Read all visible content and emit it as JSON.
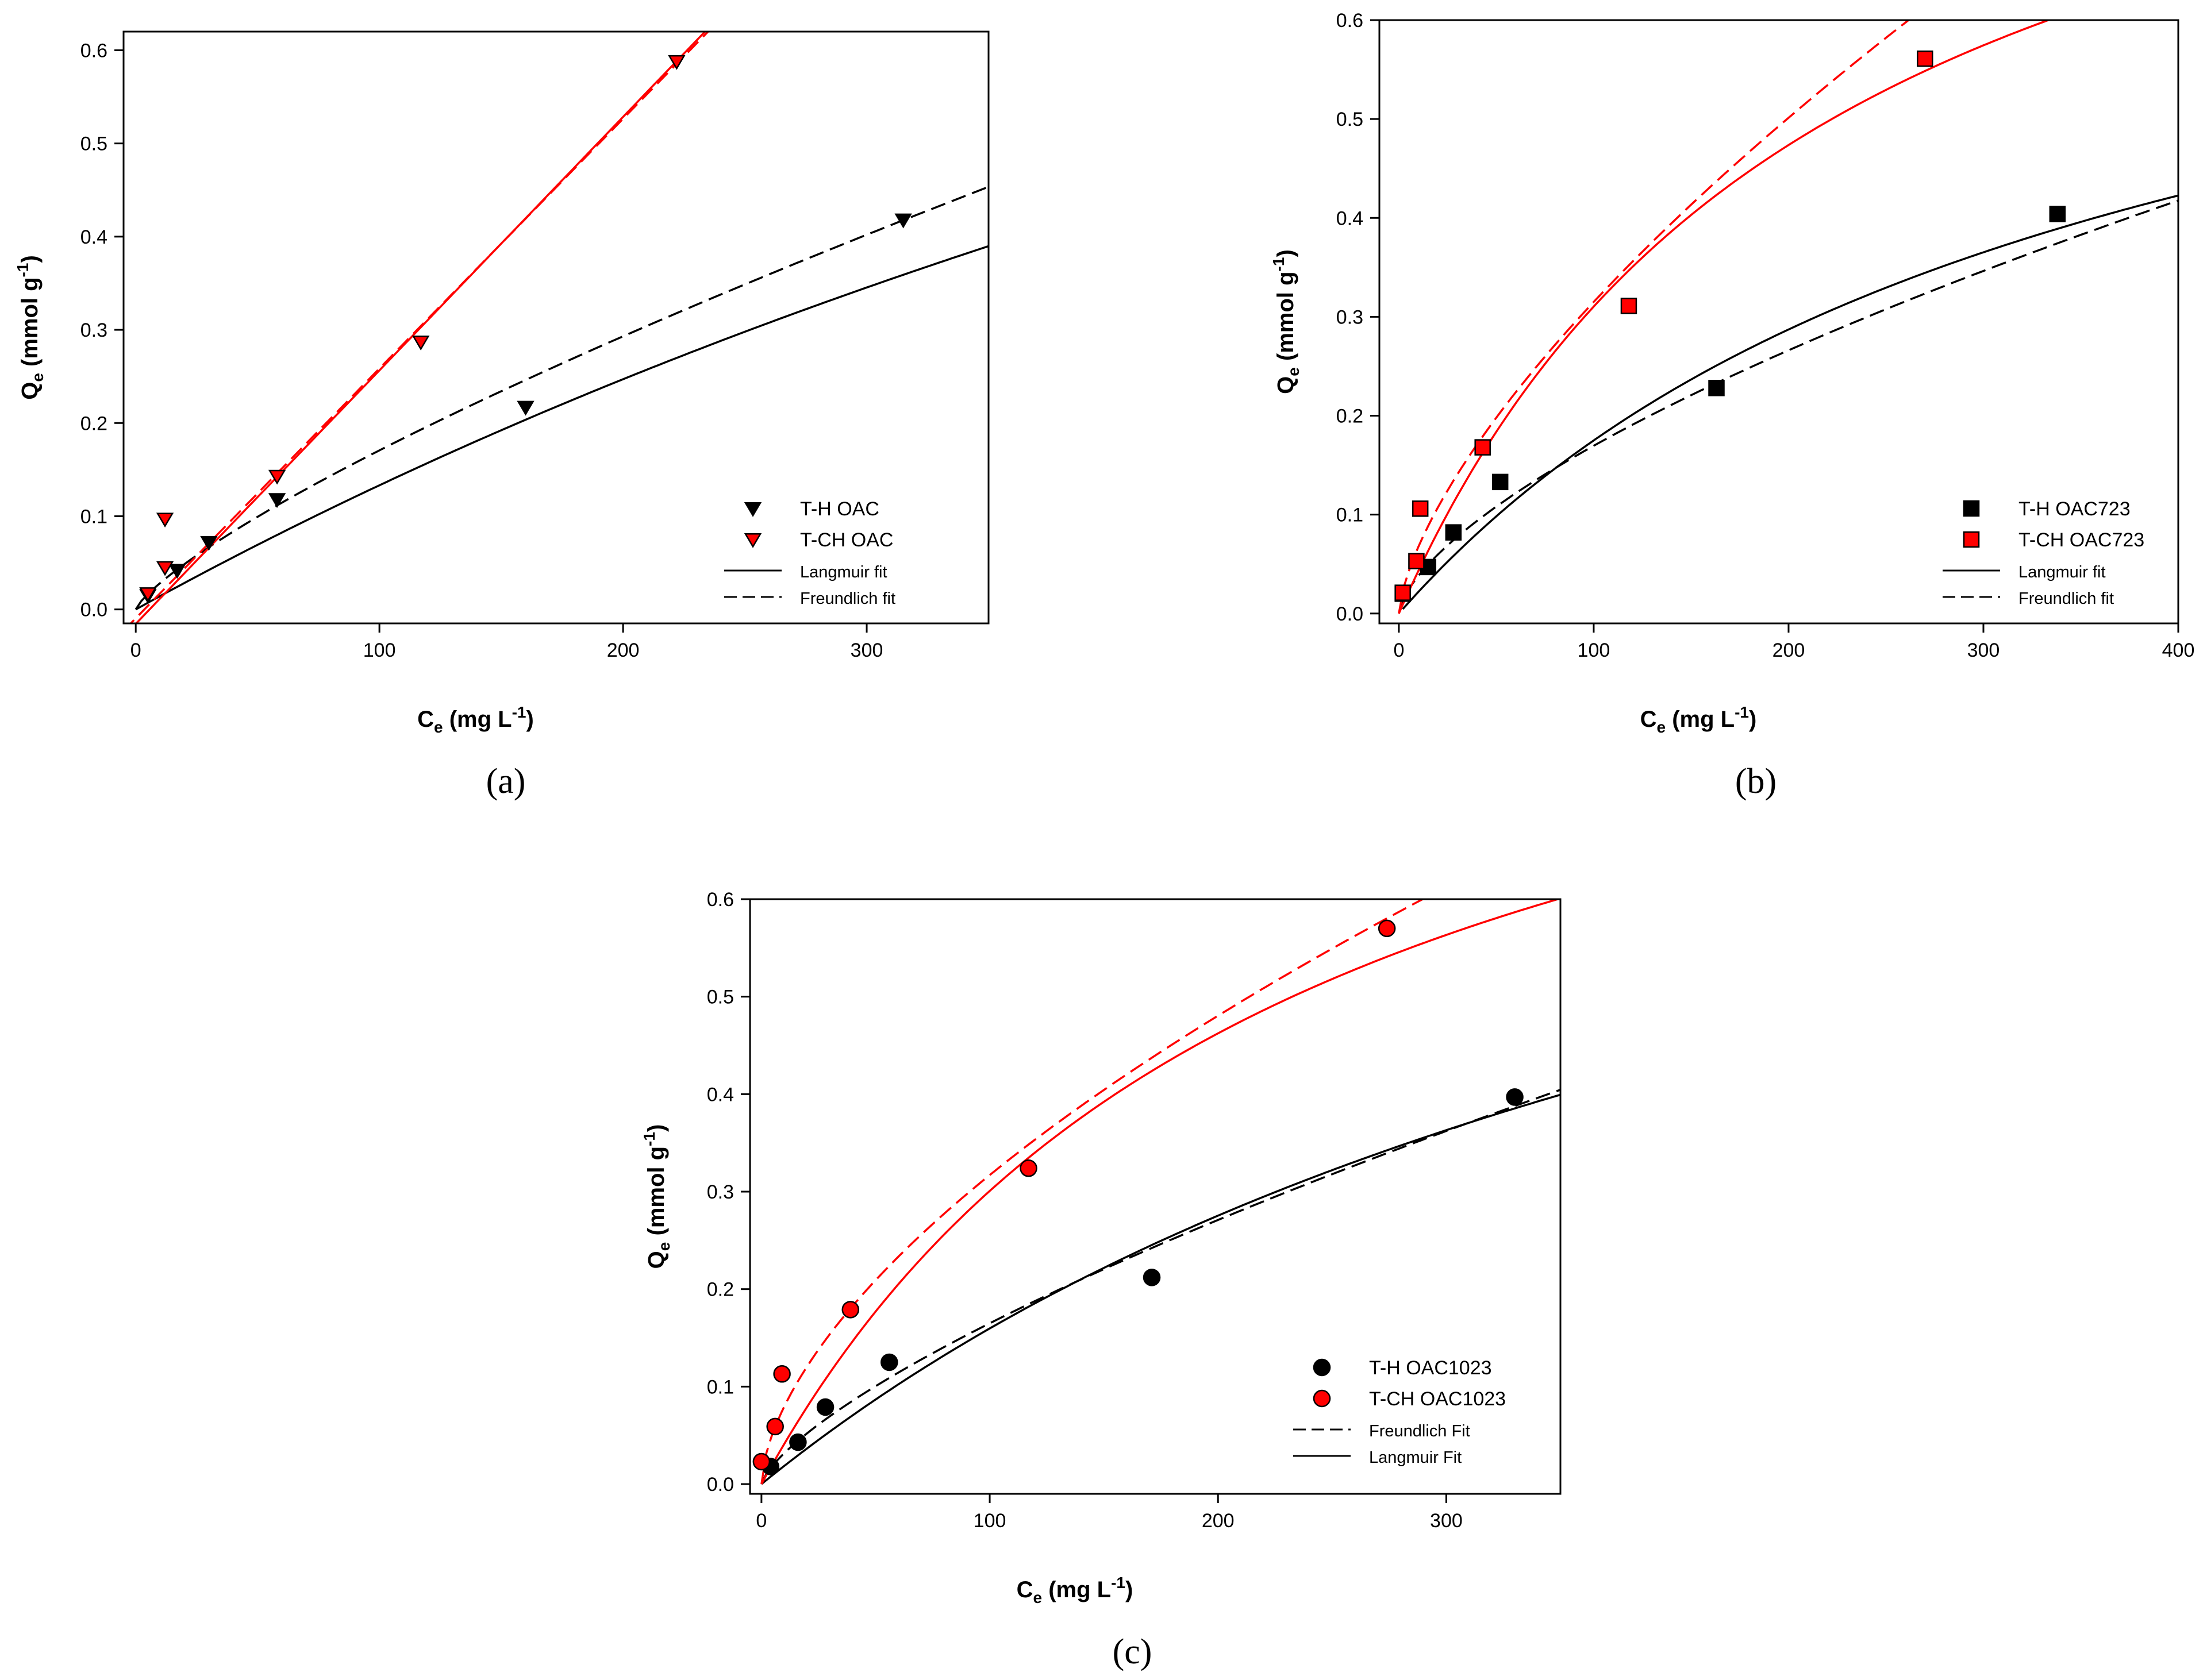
{
  "colors": {
    "th": "#000000",
    "tch": "#ff0000",
    "axis": "#000000"
  },
  "axis_labels": {
    "y_main": "Q",
    "y_sub": "e",
    "y_rest": " (mmol g",
    "y_sup": "-1",
    "y_close": ")",
    "x_main": "C",
    "x_sub": "e",
    "x_rest": " (mg L",
    "x_sup": "-1",
    "x_close": ")"
  },
  "chart_data": [
    {
      "id": "a",
      "panel_label": "(a)",
      "type": "scatter",
      "marker": "triangle-down",
      "xlim": [
        -5,
        350
      ],
      "ylim": [
        -0.015,
        0.62
      ],
      "xticks": [
        0,
        100,
        200,
        300
      ],
      "yticks": [
        0.0,
        0.1,
        0.2,
        0.3,
        0.4,
        0.5,
        0.6
      ],
      "xlabel": "Ce (mg L-1)",
      "ylabel": "Qe (mmol g-1)",
      "legend_position": "bottom-right",
      "series": [
        {
          "name": "T-H OAC",
          "color": "#000000",
          "kind": "points",
          "x": [
            5,
            17,
            30,
            58,
            160,
            315
          ],
          "y": [
            0.015,
            0.042,
            0.072,
            0.118,
            0.217,
            0.418
          ]
        },
        {
          "name": "T-CH OAC",
          "color": "#ff0000",
          "kind": "points",
          "x": [
            5,
            12,
            12,
            58,
            117,
            222
          ],
          "y": [
            0.017,
            0.045,
            0.097,
            0.143,
            0.287,
            0.588
          ]
        },
        {
          "name": "Langmuir fit",
          "group": "T-H OAC",
          "color": "#000000",
          "kind": "langmuir",
          "dash": false,
          "qmax": 1.7,
          "K": 0.00085,
          "x_range": [
            0,
            350
          ]
        },
        {
          "name": "Freundlich fit",
          "group": "T-H OAC",
          "color": "#000000",
          "kind": "freundlich",
          "dash": true,
          "KF": 0.0047,
          "n_inv": 0.78,
          "x_range": [
            0,
            350
          ]
        },
        {
          "name": "Langmuir fit",
          "group": "T-CH OAC",
          "color": "#ff0000",
          "kind": "linear",
          "dash": false,
          "slope": 0.00272,
          "intercept": -0.0155,
          "x_range": [
            -5,
            350
          ]
        },
        {
          "name": "Freundlich fit",
          "group": "T-CH OAC",
          "color": "#ff0000",
          "kind": "linear",
          "dash": true,
          "slope": 0.00268,
          "intercept": -0.0095,
          "x_range": [
            -5,
            350
          ]
        }
      ],
      "legend": [
        {
          "label": "T-H OAC",
          "symbol": "marker",
          "color": "#000000",
          "size": "big"
        },
        {
          "label": "T-CH OAC",
          "symbol": "marker",
          "color": "#ff0000",
          "size": "big"
        },
        {
          "label": "Langmuir fit",
          "symbol": "solid",
          "color": "#000000",
          "size": "small"
        },
        {
          "label": "Freundlich fit",
          "symbol": "dash",
          "color": "#000000",
          "size": "small"
        }
      ]
    },
    {
      "id": "b",
      "panel_label": "(b)",
      "type": "scatter",
      "marker": "square",
      "xlim": [
        -10,
        400
      ],
      "ylim": [
        -0.01,
        0.6
      ],
      "xticks": [
        0,
        100,
        200,
        300,
        400
      ],
      "yticks": [
        0.0,
        0.1,
        0.2,
        0.3,
        0.4,
        0.5,
        0.6
      ],
      "xlabel": "Ce (mg L-1)",
      "ylabel": "Qe (mmol g-1)",
      "legend_position": "bottom-right",
      "series": [
        {
          "name": "T-H OAC723",
          "color": "#000000",
          "kind": "points",
          "x": [
            2,
            15,
            28,
            52,
            163,
            338
          ],
          "y": [
            0.02,
            0.047,
            0.082,
            0.133,
            0.228,
            0.404
          ]
        },
        {
          "name": "T-CH OAC723",
          "color": "#ff0000",
          "kind": "points",
          "x": [
            2,
            9,
            11,
            43,
            118,
            270
          ],
          "y": [
            0.021,
            0.053,
            0.106,
            0.168,
            0.311,
            0.561
          ]
        },
        {
          "name": "Langmuir fit",
          "group": "T-H OAC723",
          "color": "#000000",
          "kind": "langmuir",
          "dash": false,
          "qmax": 0.8,
          "K": 0.0028,
          "x_range": [
            2,
            400
          ]
        },
        {
          "name": "Freundlich fit",
          "group": "T-H OAC723",
          "color": "#000000",
          "kind": "freundlich",
          "dash": true,
          "KF": 0.0085,
          "n_inv": 0.65,
          "x_range": [
            0,
            400
          ]
        },
        {
          "name": "Langmuir fit",
          "group": "T-CH OAC723",
          "color": "#ff0000",
          "kind": "langmuir",
          "dash": false,
          "qmax": 1.0,
          "K": 0.0045,
          "x_range": [
            0,
            400
          ]
        },
        {
          "name": "Freundlich fit",
          "group": "T-CH OAC723",
          "color": "#ff0000",
          "kind": "freundlich",
          "dash": true,
          "KF": 0.0144,
          "n_inv": 0.67,
          "x_range": [
            0,
            400
          ]
        }
      ],
      "legend": [
        {
          "label": "T-H OAC723",
          "symbol": "marker",
          "color": "#000000",
          "size": "big"
        },
        {
          "label": "T-CH OAC723",
          "symbol": "marker",
          "color": "#ff0000",
          "size": "big"
        },
        {
          "label": "Langmuir fit",
          "symbol": "solid",
          "color": "#000000",
          "size": "small"
        },
        {
          "label": "Freundlich fit",
          "symbol": "dash",
          "color": "#000000",
          "size": "small"
        }
      ]
    },
    {
      "id": "c",
      "panel_label": "(c)",
      "type": "scatter",
      "marker": "circle",
      "xlim": [
        -5,
        350
      ],
      "ylim": [
        -0.01,
        0.6
      ],
      "xticks": [
        0,
        100,
        200,
        300
      ],
      "yticks": [
        0.0,
        0.1,
        0.2,
        0.3,
        0.4,
        0.5,
        0.6
      ],
      "xlabel": "Ce (mg L-1)",
      "ylabel": "Qe (mmol g-1)",
      "legend_position": "bottom-right",
      "series": [
        {
          "name": "T-H OAC1023",
          "color": "#000000",
          "kind": "points",
          "x": [
            4,
            16,
            28,
            56,
            171,
            330
          ],
          "y": [
            0.018,
            0.043,
            0.079,
            0.125,
            0.212,
            0.397
          ]
        },
        {
          "name": "T-CH OAC1023",
          "color": "#ff0000",
          "kind": "points",
          "x": [
            0,
            6,
            9,
            39,
            117,
            274
          ],
          "y": [
            0.023,
            0.059,
            0.113,
            0.179,
            0.324,
            0.57
          ]
        },
        {
          "name": "Langmuir Fit",
          "group": "T-H OAC1023",
          "color": "#000000",
          "kind": "langmuir",
          "dash": false,
          "qmax": 1.0,
          "K": 0.0019,
          "x_range": [
            0,
            350
          ]
        },
        {
          "name": "Freundlich Fit",
          "group": "T-H OAC1023",
          "color": "#000000",
          "kind": "freundlich",
          "dash": true,
          "KF": 0.0061,
          "n_inv": 0.716,
          "x_range": [
            0,
            350
          ]
        },
        {
          "name": "Langmuir Fit",
          "group": "T-CH OAC1023",
          "color": "#ff0000",
          "kind": "langmuir",
          "dash": false,
          "qmax": 1.0,
          "K": 0.0043,
          "x_range": [
            0,
            350
          ]
        },
        {
          "name": "Freundlich Fit",
          "group": "T-CH OAC1023",
          "color": "#ff0000",
          "kind": "freundlich",
          "dash": true,
          "KF": 0.02,
          "n_inv": 0.6,
          "x_range": [
            0,
            350
          ]
        }
      ],
      "legend": [
        {
          "label": "T-H OAC1023",
          "symbol": "marker",
          "color": "#000000",
          "size": "big"
        },
        {
          "label": "T-CH OAC1023",
          "symbol": "marker",
          "color": "#ff0000",
          "size": "big"
        },
        {
          "label": "Freundlich Fit",
          "symbol": "dash",
          "color": "#000000",
          "size": "small"
        },
        {
          "label": "Langmuir Fit",
          "symbol": "solid",
          "color": "#000000",
          "size": "small"
        }
      ]
    }
  ]
}
